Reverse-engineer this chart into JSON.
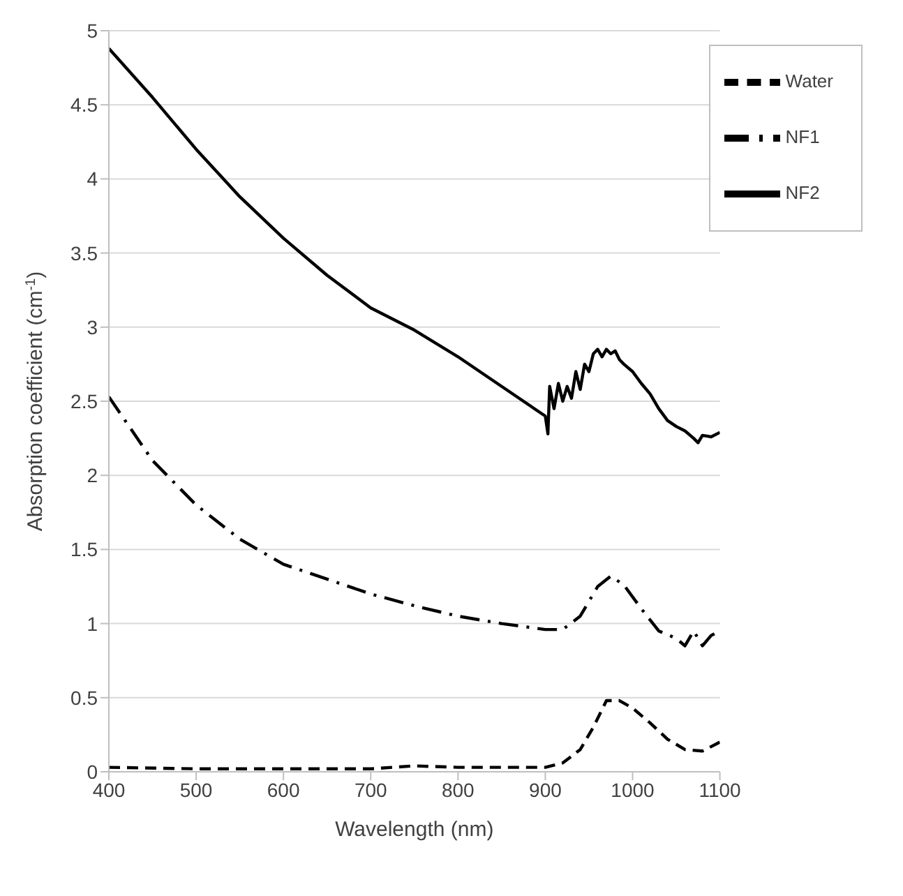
{
  "chart_data": {
    "type": "line",
    "xlabel": "Wavelength (nm)",
    "ylabel": "Absorption coefficient (cm$^{-1}$)",
    "xlim": [
      400,
      1100
    ],
    "xticks": [
      400,
      500,
      600,
      700,
      800,
      900,
      1000,
      1100
    ],
    "ylim": [
      0,
      5
    ],
    "yticks": [
      0,
      0.5,
      1,
      1.5,
      2,
      2.5,
      3,
      3.5,
      4,
      4.5,
      5
    ],
    "grid": "y",
    "legend": "top right",
    "marker": "none",
    "series": [
      {
        "name": "Water",
        "color": "#000000",
        "line_style": "dashed",
        "x": [
          400,
          500,
          600,
          700,
          750,
          800,
          900,
          920,
          940,
          955,
          970,
          985,
          1000,
          1020,
          1040,
          1060,
          1080,
          1100
        ],
        "values": [
          0.03,
          0.02,
          0.02,
          0.02,
          0.04,
          0.03,
          0.03,
          0.06,
          0.15,
          0.3,
          0.48,
          0.48,
          0.43,
          0.33,
          0.22,
          0.15,
          0.14,
          0.2
        ]
      },
      {
        "name": "NF1",
        "color": "#000000",
        "line_style": "dashdot",
        "x": [
          400,
          450,
          500,
          550,
          600,
          650,
          700,
          750,
          800,
          850,
          900,
          920,
          940,
          960,
          975,
          990,
          1010,
          1030,
          1050,
          1060,
          1070,
          1080,
          1090,
          1100
        ],
        "values": [
          2.53,
          2.1,
          1.8,
          1.57,
          1.4,
          1.3,
          1.2,
          1.12,
          1.05,
          1,
          0.96,
          0.96,
          1.05,
          1.25,
          1.32,
          1.26,
          1.1,
          0.95,
          0.9,
          0.85,
          0.95,
          0.85,
          0.92,
          0.95
        ]
      },
      {
        "name": "NF2",
        "color": "#000000",
        "line_style": "solid",
        "x": [
          400,
          450,
          500,
          550,
          600,
          650,
          700,
          750,
          800,
          850,
          900,
          903,
          905,
          910,
          915,
          920,
          925,
          930,
          935,
          940,
          945,
          950,
          955,
          960,
          965,
          970,
          975,
          980,
          985,
          990,
          1000,
          1010,
          1020,
          1030,
          1040,
          1050,
          1060,
          1070,
          1075,
          1080,
          1090,
          1100
        ],
        "values": [
          4.88,
          4.55,
          4.2,
          3.88,
          3.6,
          3.35,
          3.13,
          2.98,
          2.8,
          2.6,
          2.4,
          2.28,
          2.6,
          2.45,
          2.62,
          2.5,
          2.6,
          2.52,
          2.7,
          2.58,
          2.75,
          2.7,
          2.82,
          2.85,
          2.8,
          2.85,
          2.82,
          2.84,
          2.78,
          2.75,
          2.7,
          2.62,
          2.55,
          2.45,
          2.37,
          2.33,
          2.3,
          2.25,
          2.22,
          2.27,
          2.26,
          2.29
        ]
      }
    ]
  }
}
